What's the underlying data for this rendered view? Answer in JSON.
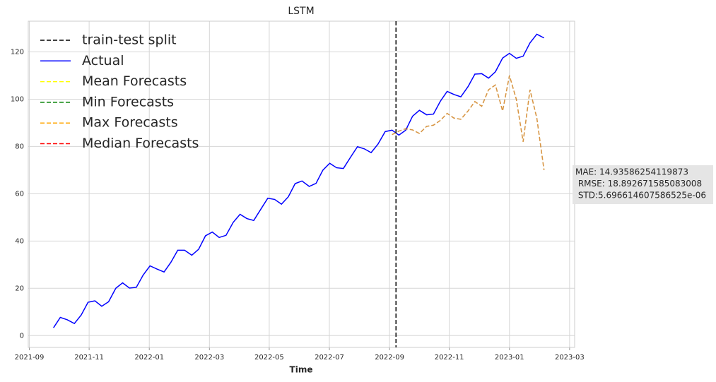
{
  "chart_data": {
    "type": "line",
    "title": "LSTM",
    "x_label": "Time",
    "xlim": [
      2021.664,
      2023.181
    ],
    "xticks": [
      {
        "value": 2021.667,
        "label": "2021-09"
      },
      {
        "value": 2021.833,
        "label": "2021-11"
      },
      {
        "value": 2022.0,
        "label": "2022-01"
      },
      {
        "value": 2022.167,
        "label": "2022-03"
      },
      {
        "value": 2022.333,
        "label": "2022-05"
      },
      {
        "value": 2022.5,
        "label": "2022-07"
      },
      {
        "value": 2022.667,
        "label": "2022-09"
      },
      {
        "value": 2022.833,
        "label": "2022-11"
      },
      {
        "value": 2023.0,
        "label": "2023-01"
      },
      {
        "value": 2023.167,
        "label": "2023-03"
      }
    ],
    "ylim": [
      -5,
      133
    ],
    "yticks": [
      0,
      20,
      40,
      60,
      80,
      100,
      120
    ],
    "grid": true,
    "legend": "upper left",
    "split": {
      "name": "train-test split",
      "x": 2022.685,
      "color": "black",
      "linestyle": "dashed"
    },
    "x": [
      2021.734,
      2021.753,
      2021.772,
      2021.792,
      2021.811,
      2021.83,
      2021.849,
      2021.868,
      2021.887,
      2021.907,
      2021.926,
      2021.945,
      2021.964,
      2021.983,
      2022.002,
      2022.022,
      2022.041,
      2022.06,
      2022.079,
      2022.098,
      2022.118,
      2022.137,
      2022.156,
      2022.175,
      2022.194,
      2022.213,
      2022.233,
      2022.252,
      2022.271,
      2022.29,
      2022.309,
      2022.329,
      2022.348,
      2022.367,
      2022.386,
      2022.405,
      2022.424,
      2022.444,
      2022.463,
      2022.482,
      2022.501,
      2022.52,
      2022.539,
      2022.559,
      2022.578,
      2022.597,
      2022.616,
      2022.635,
      2022.655,
      2022.674,
      2022.693,
      2022.712,
      2022.731,
      2022.75,
      2022.77,
      2022.789,
      2022.808,
      2022.827,
      2022.846,
      2022.865,
      2022.885,
      2022.904,
      2022.923,
      2022.942,
      2022.961,
      2022.981,
      2023.0,
      2023.019,
      2023.038,
      2023.057,
      2023.076,
      2023.096
    ],
    "series": [
      {
        "name": "Actual",
        "color": "blue",
        "linestyle": "solid",
        "values": [
          3.3,
          7.7,
          6.7,
          5.1,
          8.7,
          14.1,
          14.7,
          12.4,
          14.3,
          20.0,
          22.3,
          20.1,
          20.4,
          25.6,
          29.5,
          28.1,
          26.9,
          31.0,
          36.1,
          36.1,
          34.0,
          36.5,
          42.2,
          43.8,
          41.5,
          42.4,
          47.9,
          51.3,
          49.5,
          48.7,
          53.3,
          58.1,
          57.6,
          55.6,
          58.7,
          64.3,
          65.4,
          63.1,
          64.4,
          70.0,
          72.9,
          71.0,
          70.7,
          75.5,
          79.9,
          79.0,
          77.4,
          81.0,
          86.3,
          86.9,
          84.8,
          86.9,
          92.8,
          95.3,
          93.4,
          93.7,
          99.1,
          103.3,
          102.0,
          101.0,
          105.3,
          110.6,
          110.8,
          108.9,
          111.6,
          117.4,
          119.4,
          117.3,
          118.2,
          123.8,
          127.5,
          125.9
        ]
      },
      {
        "name": "Mean Forecasts",
        "color": "yellow",
        "linestyle": "dashed",
        "values": [
          null,
          null,
          null,
          null,
          null,
          null,
          null,
          null,
          null,
          null,
          null,
          null,
          null,
          null,
          null,
          null,
          null,
          null,
          null,
          null,
          null,
          null,
          null,
          null,
          null,
          null,
          null,
          null,
          null,
          null,
          null,
          null,
          null,
          null,
          null,
          null,
          null,
          null,
          null,
          null,
          null,
          null,
          null,
          null,
          null,
          null,
          null,
          null,
          null,
          85.0,
          86.5,
          87.5,
          87.0,
          85.5,
          88.5,
          89.0,
          91.0,
          94.0,
          92.0,
          91.5,
          95.0,
          99.0,
          97.0,
          104.0,
          106.0,
          95.0,
          110.0,
          100.0,
          82.0,
          104.0,
          92.0,
          70.0
        ]
      },
      {
        "name": "Min Forecasts",
        "color": "green",
        "linestyle": "dashed",
        "values": [
          null,
          null,
          null,
          null,
          null,
          null,
          null,
          null,
          null,
          null,
          null,
          null,
          null,
          null,
          null,
          null,
          null,
          null,
          null,
          null,
          null,
          null,
          null,
          null,
          null,
          null,
          null,
          null,
          null,
          null,
          null,
          null,
          null,
          null,
          null,
          null,
          null,
          null,
          null,
          null,
          null,
          null,
          null,
          null,
          null,
          null,
          null,
          null,
          null,
          85.0,
          86.5,
          87.5,
          87.0,
          85.5,
          88.5,
          89.0,
          91.0,
          94.0,
          92.0,
          91.5,
          95.0,
          99.0,
          97.0,
          104.0,
          106.0,
          95.0,
          110.0,
          100.0,
          82.0,
          104.0,
          92.0,
          70.0
        ]
      },
      {
        "name": "Max Forecasts",
        "color": "orange",
        "linestyle": "dashed",
        "values": [
          null,
          null,
          null,
          null,
          null,
          null,
          null,
          null,
          null,
          null,
          null,
          null,
          null,
          null,
          null,
          null,
          null,
          null,
          null,
          null,
          null,
          null,
          null,
          null,
          null,
          null,
          null,
          null,
          null,
          null,
          null,
          null,
          null,
          null,
          null,
          null,
          null,
          null,
          null,
          null,
          null,
          null,
          null,
          null,
          null,
          null,
          null,
          null,
          null,
          85.0,
          86.5,
          87.5,
          87.0,
          85.5,
          88.5,
          89.0,
          91.0,
          94.0,
          92.0,
          91.5,
          95.0,
          99.0,
          97.0,
          104.0,
          106.0,
          95.0,
          110.0,
          100.0,
          82.0,
          104.0,
          92.0,
          70.0
        ]
      },
      {
        "name": "Median Forecasts",
        "color": "red",
        "linestyle": "dashed",
        "values": [
          null,
          null,
          null,
          null,
          null,
          null,
          null,
          null,
          null,
          null,
          null,
          null,
          null,
          null,
          null,
          null,
          null,
          null,
          null,
          null,
          null,
          null,
          null,
          null,
          null,
          null,
          null,
          null,
          null,
          null,
          null,
          null,
          null,
          null,
          null,
          null,
          null,
          null,
          null,
          null,
          null,
          null,
          null,
          null,
          null,
          null,
          null,
          null,
          null,
          85.0,
          86.5,
          87.5,
          87.0,
          85.5,
          88.5,
          89.0,
          91.0,
          94.0,
          92.0,
          91.5,
          95.0,
          99.0,
          97.0,
          104.0,
          106.0,
          95.0,
          110.0,
          100.0,
          82.0,
          104.0,
          92.0,
          70.0
        ]
      }
    ],
    "annotation": [
      "MAE: 14.93586254119873",
      " RMSE: 18.892671585083008",
      " STD:5.696614607586525e-06"
    ]
  }
}
